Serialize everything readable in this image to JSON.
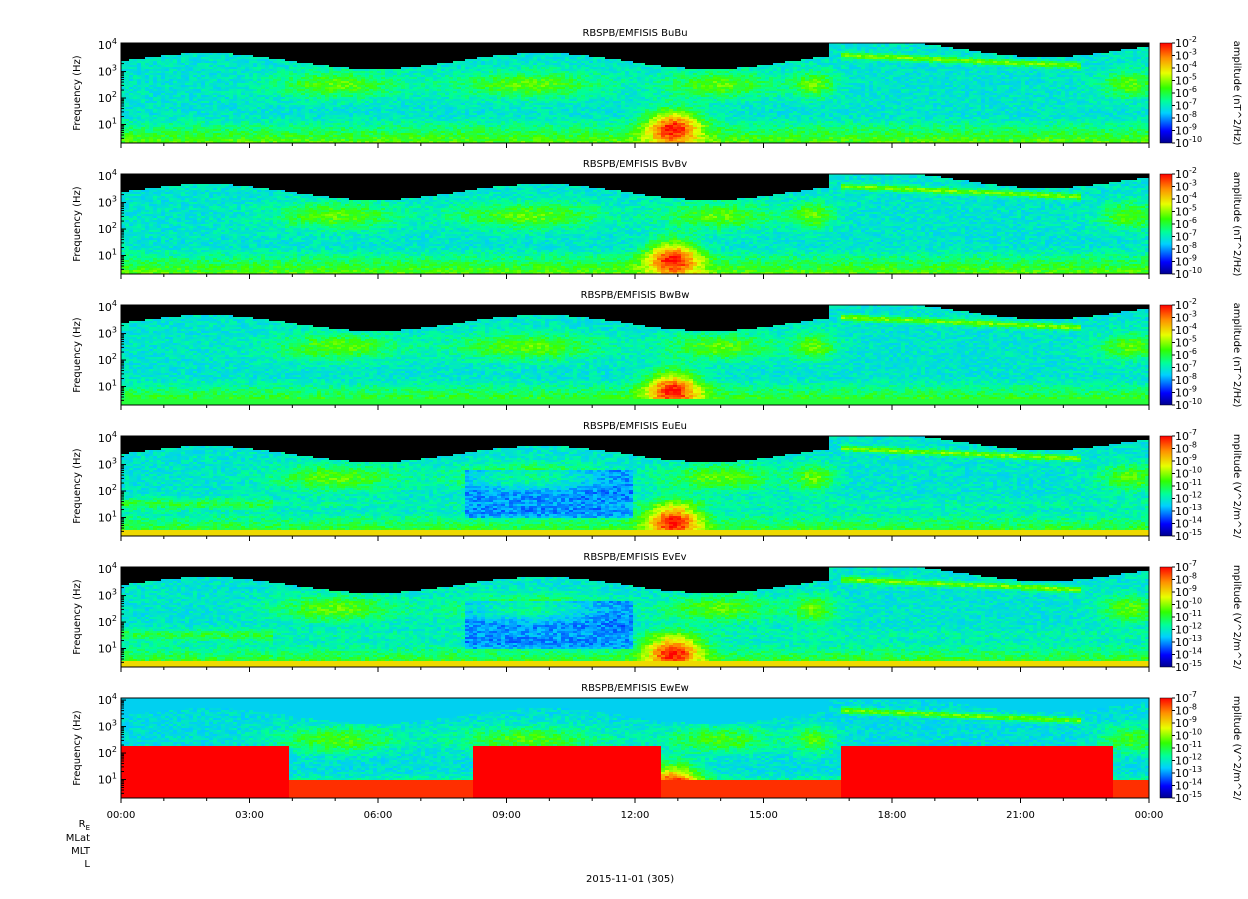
{
  "figure": {
    "date_label": "2015-11-01 (305)",
    "ephemeris_rows": [
      "R",
      "MLat",
      "MLT",
      "L"
    ],
    "ephemeris_re_subscript": "E",
    "x_ticks": [
      "00:00",
      "03:00",
      "06:00",
      "09:00",
      "12:00",
      "15:00",
      "18:00",
      "21:00",
      "00:00"
    ]
  },
  "chart_data": [
    {
      "type": "heatmap",
      "title": "RBSPB/EMFISIS  BuBu",
      "ylabel": "Frequency (Hz)",
      "y_scale": "log",
      "ylim": [
        2,
        12000
      ],
      "xlim": [
        "00:00",
        "24:00"
      ],
      "y_ticks": [
        "10^1",
        "10^2",
        "10^3",
        "10^4"
      ],
      "colorbar": {
        "label": "amplitude (nT^2/Hz)",
        "scale": "log",
        "range": [
          1e-10,
          0.01
        ],
        "ticks": [
          "10^-2",
          "10^-3",
          "10^-4",
          "10^-5",
          "10^-6",
          "10^-7",
          "10^-8",
          "10^-9",
          "10^-10"
        ]
      },
      "profile": "B"
    },
    {
      "type": "heatmap",
      "title": "RBSPB/EMFISIS  BvBv",
      "ylabel": "Frequency (Hz)",
      "y_scale": "log",
      "ylim": [
        2,
        12000
      ],
      "xlim": [
        "00:00",
        "24:00"
      ],
      "y_ticks": [
        "10^1",
        "10^2",
        "10^3",
        "10^4"
      ],
      "colorbar": {
        "label": "amplitude (nT^2/Hz)",
        "scale": "log",
        "range": [
          1e-10,
          0.01
        ],
        "ticks": [
          "10^-2",
          "10^-3",
          "10^-4",
          "10^-5",
          "10^-6",
          "10^-7",
          "10^-8",
          "10^-9",
          "10^-10"
        ]
      },
      "profile": "B"
    },
    {
      "type": "heatmap",
      "title": "RBSPB/EMFISIS  BwBw",
      "ylabel": "Frequency (Hz)",
      "y_scale": "log",
      "ylim": [
        2,
        12000
      ],
      "xlim": [
        "00:00",
        "24:00"
      ],
      "y_ticks": [
        "10^1",
        "10^2",
        "10^3",
        "10^4"
      ],
      "colorbar": {
        "label": "amplitude (nT^2/Hz)",
        "scale": "log",
        "range": [
          1e-10,
          0.01
        ],
        "ticks": [
          "10^-2",
          "10^-3",
          "10^-4",
          "10^-5",
          "10^-6",
          "10^-7",
          "10^-8",
          "10^-9",
          "10^-10"
        ]
      },
      "profile": "Bw"
    },
    {
      "type": "heatmap",
      "title": "RBSPB/EMFISIS  EuEu",
      "ylabel": "Frequency (Hz)",
      "y_scale": "log",
      "ylim": [
        2,
        12000
      ],
      "xlim": [
        "00:00",
        "24:00"
      ],
      "y_ticks": [
        "10^1",
        "10^2",
        "10^3",
        "10^4"
      ],
      "colorbar": {
        "label": "mplitude (V^2/m^2/",
        "scale": "log",
        "range": [
          1e-15,
          1e-07
        ],
        "ticks": [
          "10^-7",
          "10^-8",
          "10^-9",
          "10^-10",
          "10^-11",
          "10^-12",
          "10^-13",
          "10^-14",
          "10^-15"
        ]
      },
      "profile": "E"
    },
    {
      "type": "heatmap",
      "title": "RBSPB/EMFISIS  EvEv",
      "ylabel": "Frequency (Hz)",
      "y_scale": "log",
      "ylim": [
        2,
        12000
      ],
      "xlim": [
        "00:00",
        "24:00"
      ],
      "y_ticks": [
        "10^1",
        "10^2",
        "10^3",
        "10^4"
      ],
      "colorbar": {
        "label": "mplitude (V^2/m^2/",
        "scale": "log",
        "range": [
          1e-15,
          1e-07
        ],
        "ticks": [
          "10^-7",
          "10^-8",
          "10^-9",
          "10^-10",
          "10^-11",
          "10^-12",
          "10^-13",
          "10^-14",
          "10^-15"
        ]
      },
      "profile": "E"
    },
    {
      "type": "heatmap",
      "title": "RBSPB/EMFISIS  EwEw",
      "ylabel": "Frequency (Hz)",
      "y_scale": "log",
      "ylim": [
        2,
        12000
      ],
      "xlim": [
        "00:00",
        "24:00"
      ],
      "y_ticks": [
        "10^1",
        "10^2",
        "10^3",
        "10^4"
      ],
      "colorbar": {
        "label": "mplitude (V^2/m^2/",
        "scale": "log",
        "range": [
          1e-15,
          1e-07
        ],
        "ticks": [
          "10^-7",
          "10^-8",
          "10^-9",
          "10^-10",
          "10^-11",
          "10^-12",
          "10^-13",
          "10^-14",
          "10^-15"
        ]
      },
      "profile": "Ew"
    }
  ]
}
